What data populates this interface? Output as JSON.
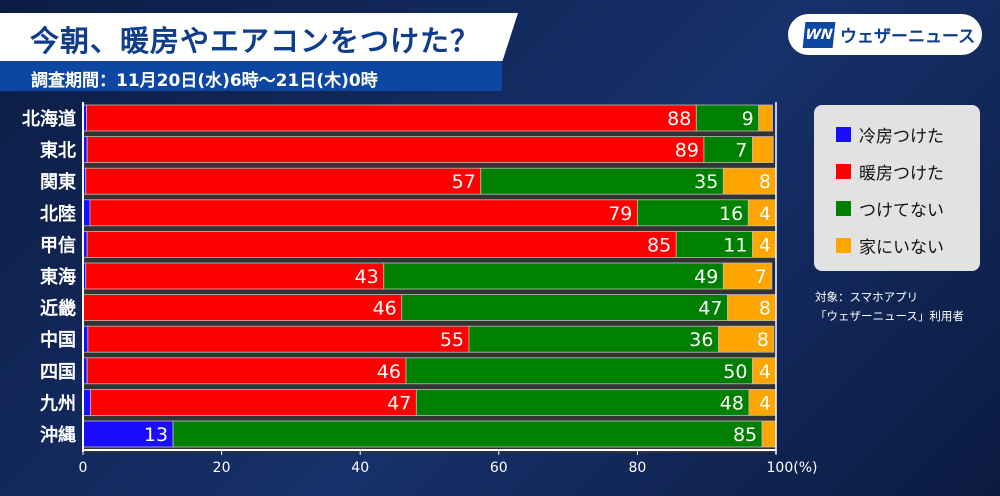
{
  "header": {
    "title": "今朝、暖房やエアコンをつけた？",
    "period": "調査期間：11月20日(水)6時〜21日(木)0時"
  },
  "logo": {
    "mark": "WN",
    "text": "ウェザーニュース"
  },
  "note": [
    "対象：スマホアプリ",
    "「ウェザーニュース」利用者"
  ],
  "chart_data": {
    "type": "bar",
    "stacked": true,
    "orientation": "horizontal",
    "title": "今朝、暖房やエアコンをつけた？",
    "categories": [
      "北海道",
      "東北",
      "関東",
      "北陸",
      "甲信",
      "東海",
      "近畿",
      "中国",
      "四国",
      "九州",
      "沖縄"
    ],
    "series": [
      {
        "name": "冷房つけた",
        "color": "#1a0dff",
        "values": [
          0.5,
          0.6,
          0.4,
          1,
          0.6,
          0.4,
          0,
          0.7,
          0.6,
          1.1,
          13
        ],
        "labels": [
          null,
          null,
          null,
          null,
          null,
          null,
          null,
          null,
          null,
          null,
          "13"
        ]
      },
      {
        "name": "暖房つけた",
        "color": "#ff0000",
        "values": [
          88,
          89,
          57,
          79,
          85,
          43,
          46,
          55,
          46,
          47,
          0
        ],
        "labels": [
          "88",
          "89",
          "57",
          "79",
          "85",
          "43",
          "46",
          "55",
          "46",
          "47",
          null
        ]
      },
      {
        "name": "つけてない",
        "color": "#008000",
        "values": [
          9,
          7,
          35,
          16,
          11,
          49,
          47,
          36,
          50,
          48,
          85
        ],
        "labels": [
          "9",
          "7",
          "35",
          "16",
          "11",
          "49",
          "47",
          "36",
          "50",
          "48",
          "85"
        ]
      },
      {
        "name": "家にいない",
        "color": "#ffa500",
        "values": [
          2,
          3,
          8,
          4,
          4,
          7,
          8,
          8,
          4,
          4,
          2
        ],
        "labels": [
          null,
          null,
          "8",
          "4",
          "4",
          "7",
          "8",
          "8",
          "4",
          "4",
          null
        ]
      }
    ],
    "xticks": [
      "0",
      "20",
      "40",
      "60",
      "80",
      "100(%)"
    ],
    "xlim": [
      0,
      100
    ],
    "legend": "right"
  }
}
